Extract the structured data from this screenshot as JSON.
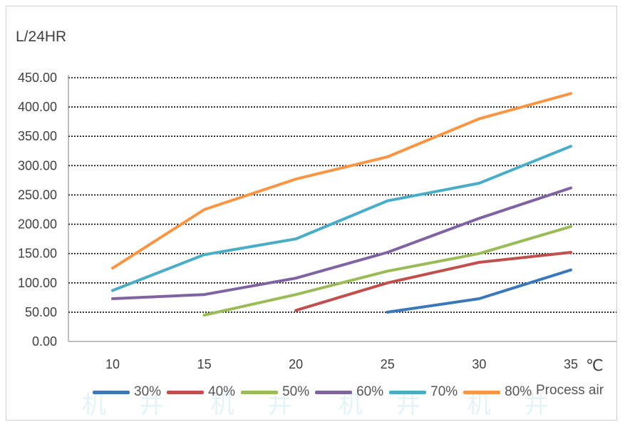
{
  "chart_data": {
    "type": "line",
    "ylabel": "L/24HR",
    "xlabel": "",
    "x_unit": "℃",
    "legend_title": "Process air",
    "xlim": [
      10,
      35
    ],
    "ylim": [
      0,
      450
    ],
    "x_ticks": [
      "10",
      "15",
      "20",
      "25",
      "30",
      "35"
    ],
    "y_ticks": [
      "0.00",
      "50.00",
      "100.00",
      "150.00",
      "200.00",
      "250.00",
      "300.00",
      "350.00",
      "400.00",
      "450.00"
    ],
    "grid": "horizontal dotted",
    "legend_position": "bottom",
    "series": [
      {
        "name": "30%",
        "color": "#3c78b8",
        "x": [
          25,
          30,
          35
        ],
        "y": [
          50,
          73,
          122
        ]
      },
      {
        "name": "40%",
        "color": "#c0504d",
        "x": [
          20,
          25,
          30,
          35
        ],
        "y": [
          53,
          100,
          135,
          152
        ]
      },
      {
        "name": "50%",
        "color": "#9bbb59",
        "x": [
          15,
          20,
          25,
          30,
          35
        ],
        "y": [
          45,
          80,
          120,
          150,
          196
        ]
      },
      {
        "name": "60%",
        "color": "#8064a2",
        "x": [
          10,
          15,
          20,
          25,
          30,
          35
        ],
        "y": [
          73,
          80,
          108,
          152,
          210,
          262
        ]
      },
      {
        "name": "70%",
        "color": "#4bacc6",
        "x": [
          10,
          15,
          20,
          25,
          30,
          35
        ],
        "y": [
          87,
          148,
          175,
          240,
          270,
          333
        ]
      },
      {
        "name": "80%",
        "color": "#f79646",
        "x": [
          10,
          15,
          20,
          25,
          30,
          35
        ],
        "y": [
          125,
          225,
          277,
          315,
          380,
          423
        ]
      }
    ]
  },
  "watermark": "机 井"
}
